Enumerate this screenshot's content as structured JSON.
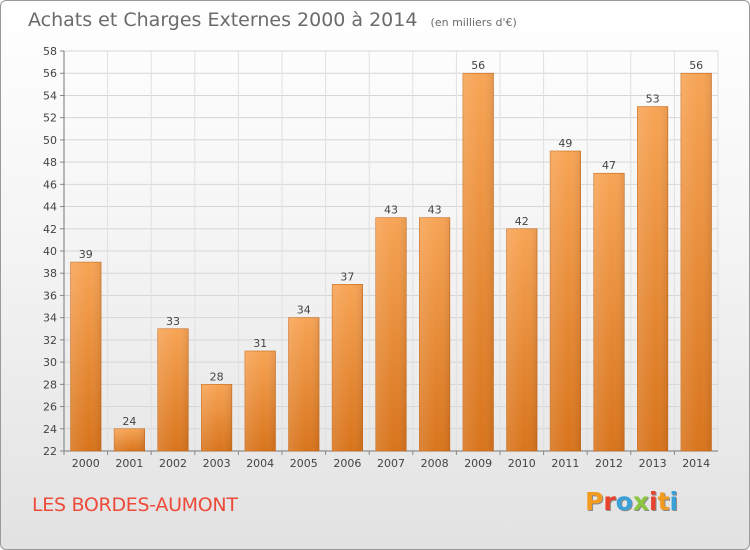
{
  "header": {
    "title": "Achats et Charges Externes 2000 à 2014",
    "unit": "(en milliers d'€)"
  },
  "footer": {
    "place": "LES BORDES-AUMONT",
    "logo": "Proxiti",
    "logo_colors": [
      "#f29b21",
      "#e8412c",
      "#3aa1d9",
      "#8cc63f",
      "#e8412c",
      "#f29b21",
      "#3aa1d9"
    ]
  },
  "chart_data": {
    "type": "bar",
    "categories": [
      "2000",
      "2001",
      "2002",
      "2003",
      "2004",
      "2005",
      "2006",
      "2007",
      "2008",
      "2009",
      "2010",
      "2011",
      "2012",
      "2013",
      "2014"
    ],
    "values": [
      39,
      24,
      33,
      28,
      31,
      34,
      37,
      43,
      43,
      56,
      42,
      49,
      47,
      53,
      56
    ],
    "title": "Achats et Charges Externes 2000 à 2014",
    "subtitle": "(en milliers d'€)",
    "xlabel": "",
    "ylabel": "",
    "ylim": [
      22,
      58
    ],
    "yticks": [
      22,
      24,
      26,
      28,
      30,
      32,
      34,
      36,
      38,
      40,
      42,
      44,
      46,
      48,
      50,
      52,
      54,
      56,
      58
    ],
    "grid": true,
    "data_labels": true,
    "bar_color": "#f0923a"
  }
}
